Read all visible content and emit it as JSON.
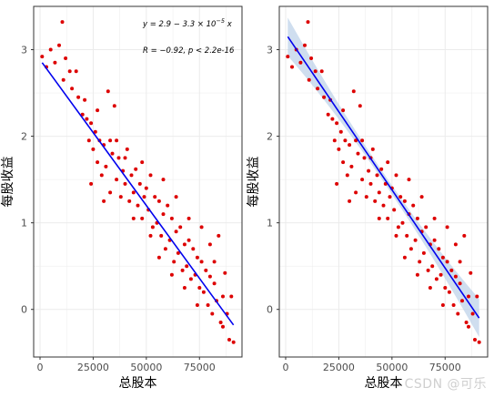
{
  "chart_data": [
    {
      "type": "scatter",
      "xlabel": "总股本",
      "ylabel": "每股收益",
      "xlim": [
        -3000,
        95000
      ],
      "ylim": [
        -0.55,
        3.5
      ],
      "xticks": [
        0,
        25000,
        50000,
        75000
      ],
      "xtick_labels": [
        "0",
        "25000",
        "50000",
        "75000"
      ],
      "yticks": [
        0,
        1,
        2,
        3
      ],
      "ytick_labels": [
        "0",
        "1",
        "2",
        "3"
      ],
      "grid": true,
      "annotation": {
        "eq_prefix": "y = 2.9 − 3.3 × 10",
        "eq_exp": "−5",
        "eq_suffix": " x",
        "corr": "R = −0.92, p < 2.2e-16"
      },
      "fit_line": {
        "x": [
          1000,
          91000
        ],
        "y": [
          2.85,
          -0.18
        ]
      },
      "points": [
        [
          1000,
          2.92
        ],
        [
          3000,
          2.8
        ],
        [
          5000,
          3.0
        ],
        [
          7000,
          2.85
        ],
        [
          9000,
          3.05
        ],
        [
          10500,
          3.32
        ],
        [
          11000,
          2.65
        ],
        [
          12000,
          2.9
        ],
        [
          14000,
          2.75
        ],
        [
          15000,
          2.55
        ],
        [
          17000,
          2.75
        ],
        [
          18000,
          2.45
        ],
        [
          20000,
          2.25
        ],
        [
          21000,
          2.42
        ],
        [
          22000,
          2.2
        ],
        [
          23000,
          1.95
        ],
        [
          24000,
          2.15
        ],
        [
          25000,
          1.85
        ],
        [
          26000,
          2.05
        ],
        [
          27000,
          1.7
        ],
        [
          28000,
          1.95
        ],
        [
          29000,
          1.55
        ],
        [
          30000,
          1.9
        ],
        [
          31000,
          1.65
        ],
        [
          32000,
          2.52
        ],
        [
          33000,
          1.95
        ],
        [
          34000,
          1.8
        ],
        [
          35000,
          2.35
        ],
        [
          36000,
          1.5
        ],
        [
          37000,
          1.75
        ],
        [
          38000,
          1.3
        ],
        [
          39000,
          1.6
        ],
        [
          40000,
          1.45
        ],
        [
          41000,
          1.85
        ],
        [
          42000,
          1.25
        ],
        [
          43000,
          1.55
        ],
        [
          44000,
          1.35
        ],
        [
          45000,
          1.62
        ],
        [
          46000,
          1.2
        ],
        [
          47000,
          1.45
        ],
        [
          48000,
          1.05
        ],
        [
          49000,
          1.3
        ],
        [
          50000,
          1.4
        ],
        [
          51000,
          1.15
        ],
        [
          52000,
          1.55
        ],
        [
          53000,
          0.95
        ],
        [
          54000,
          1.3
        ],
        [
          55000,
          1.0
        ],
        [
          56000,
          1.25
        ],
        [
          57000,
          0.85
        ],
        [
          58000,
          1.1
        ],
        [
          59000,
          0.7
        ],
        [
          60000,
          1.2
        ],
        [
          61000,
          0.8
        ],
        [
          62000,
          1.05
        ],
        [
          63000,
          0.55
        ],
        [
          64000,
          0.9
        ],
        [
          65000,
          0.65
        ],
        [
          66000,
          0.95
        ],
        [
          67000,
          0.45
        ],
        [
          68000,
          0.75
        ],
        [
          69000,
          0.5
        ],
        [
          70000,
          0.8
        ],
        [
          71000,
          0.35
        ],
        [
          72000,
          0.7
        ],
        [
          73000,
          0.4
        ],
        [
          74000,
          0.6
        ],
        [
          75000,
          0.25
        ],
        [
          76000,
          0.55
        ],
        [
          77000,
          0.2
        ],
        [
          78000,
          0.45
        ],
        [
          79000,
          0.05
        ],
        [
          80000,
          0.38
        ],
        [
          81000,
          -0.05
        ],
        [
          82000,
          0.3
        ],
        [
          83000,
          0.1
        ],
        [
          84000,
          0.85
        ],
        [
          85000,
          -0.15
        ],
        [
          86000,
          0.15
        ],
        [
          87000,
          0.42
        ],
        [
          88000,
          -0.05
        ],
        [
          89000,
          -0.35
        ],
        [
          90000,
          0.15
        ],
        [
          91000,
          -0.38
        ],
        [
          24000,
          1.45
        ],
        [
          30000,
          1.25
        ],
        [
          36000,
          1.95
        ],
        [
          44000,
          1.05
        ],
        [
          52000,
          0.85
        ],
        [
          58000,
          1.5
        ],
        [
          64000,
          1.3
        ],
        [
          70000,
          1.05
        ],
        [
          76000,
          0.95
        ],
        [
          82000,
          0.55
        ],
        [
          40000,
          1.75
        ],
        [
          48000,
          1.7
        ],
        [
          56000,
          0.6
        ],
        [
          62000,
          0.4
        ],
        [
          68000,
          0.25
        ],
        [
          74000,
          0.05
        ],
        [
          80000,
          0.75
        ],
        [
          86000,
          -0.2
        ],
        [
          33000,
          1.35
        ],
        [
          27000,
          2.3
        ]
      ]
    },
    {
      "type": "scatter",
      "xlabel": "总股本",
      "ylabel": "每股收益",
      "xlim": [
        -3000,
        95000
      ],
      "ylim": [
        -0.55,
        3.5
      ],
      "xticks": [
        0,
        25000,
        50000,
        75000
      ],
      "xtick_labels": [
        "0",
        "25000",
        "50000",
        "75000"
      ],
      "yticks": [
        0,
        1,
        2,
        3
      ],
      "ytick_labels": [
        "0",
        "1",
        "2",
        "3"
      ],
      "grid": true,
      "fit_line": {
        "x": [
          1000,
          91000
        ],
        "y": [
          3.15,
          -0.1
        ]
      },
      "points": [
        [
          1000,
          2.92
        ],
        [
          3000,
          2.8
        ],
        [
          5000,
          3.0
        ],
        [
          7000,
          2.85
        ],
        [
          9000,
          3.05
        ],
        [
          10500,
          3.32
        ],
        [
          11000,
          2.65
        ],
        [
          12000,
          2.9
        ],
        [
          14000,
          2.75
        ],
        [
          15000,
          2.55
        ],
        [
          17000,
          2.75
        ],
        [
          18000,
          2.45
        ],
        [
          20000,
          2.25
        ],
        [
          21000,
          2.42
        ],
        [
          22000,
          2.2
        ],
        [
          23000,
          1.95
        ],
        [
          24000,
          2.15
        ],
        [
          25000,
          1.85
        ],
        [
          26000,
          2.05
        ],
        [
          27000,
          1.7
        ],
        [
          28000,
          1.95
        ],
        [
          29000,
          1.55
        ],
        [
          30000,
          1.9
        ],
        [
          31000,
          1.65
        ],
        [
          32000,
          2.52
        ],
        [
          33000,
          1.95
        ],
        [
          34000,
          1.8
        ],
        [
          35000,
          2.35
        ],
        [
          36000,
          1.5
        ],
        [
          37000,
          1.75
        ],
        [
          38000,
          1.3
        ],
        [
          39000,
          1.6
        ],
        [
          40000,
          1.45
        ],
        [
          41000,
          1.85
        ],
        [
          42000,
          1.25
        ],
        [
          43000,
          1.55
        ],
        [
          44000,
          1.35
        ],
        [
          45000,
          1.62
        ],
        [
          46000,
          1.2
        ],
        [
          47000,
          1.45
        ],
        [
          48000,
          1.05
        ],
        [
          49000,
          1.3
        ],
        [
          50000,
          1.4
        ],
        [
          51000,
          1.15
        ],
        [
          52000,
          1.55
        ],
        [
          53000,
          0.95
        ],
        [
          54000,
          1.3
        ],
        [
          55000,
          1.0
        ],
        [
          56000,
          1.25
        ],
        [
          57000,
          0.85
        ],
        [
          58000,
          1.1
        ],
        [
          59000,
          0.7
        ],
        [
          60000,
          1.2
        ],
        [
          61000,
          0.8
        ],
        [
          62000,
          1.05
        ],
        [
          63000,
          0.55
        ],
        [
          64000,
          0.9
        ],
        [
          65000,
          0.65
        ],
        [
          66000,
          0.95
        ],
        [
          67000,
          0.45
        ],
        [
          68000,
          0.75
        ],
        [
          69000,
          0.5
        ],
        [
          70000,
          0.8
        ],
        [
          71000,
          0.35
        ],
        [
          72000,
          0.7
        ],
        [
          73000,
          0.4
        ],
        [
          74000,
          0.6
        ],
        [
          75000,
          0.25
        ],
        [
          76000,
          0.55
        ],
        [
          77000,
          0.2
        ],
        [
          78000,
          0.45
        ],
        [
          79000,
          0.05
        ],
        [
          80000,
          0.38
        ],
        [
          81000,
          -0.05
        ],
        [
          82000,
          0.3
        ],
        [
          83000,
          0.1
        ],
        [
          84000,
          0.85
        ],
        [
          85000,
          -0.15
        ],
        [
          86000,
          0.15
        ],
        [
          87000,
          0.42
        ],
        [
          88000,
          -0.05
        ],
        [
          89000,
          -0.35
        ],
        [
          90000,
          0.15
        ],
        [
          91000,
          -0.38
        ],
        [
          24000,
          1.45
        ],
        [
          30000,
          1.25
        ],
        [
          36000,
          1.95
        ],
        [
          44000,
          1.05
        ],
        [
          52000,
          0.85
        ],
        [
          58000,
          1.5
        ],
        [
          64000,
          1.3
        ],
        [
          70000,
          1.05
        ],
        [
          76000,
          0.95
        ],
        [
          82000,
          0.55
        ],
        [
          40000,
          1.75
        ],
        [
          48000,
          1.7
        ],
        [
          56000,
          0.6
        ],
        [
          62000,
          0.4
        ],
        [
          68000,
          0.25
        ],
        [
          74000,
          0.05
        ],
        [
          80000,
          0.75
        ],
        [
          86000,
          -0.2
        ],
        [
          33000,
          1.35
        ],
        [
          27000,
          2.3
        ]
      ]
    }
  ],
  "colors": {
    "points": "#dd0000",
    "line": "#0000ee",
    "band": "#b6cde6",
    "grid": "#ebebeb",
    "border": "#333333",
    "text": "#4d4d4d"
  },
  "watermark": "CSDN @可乐"
}
